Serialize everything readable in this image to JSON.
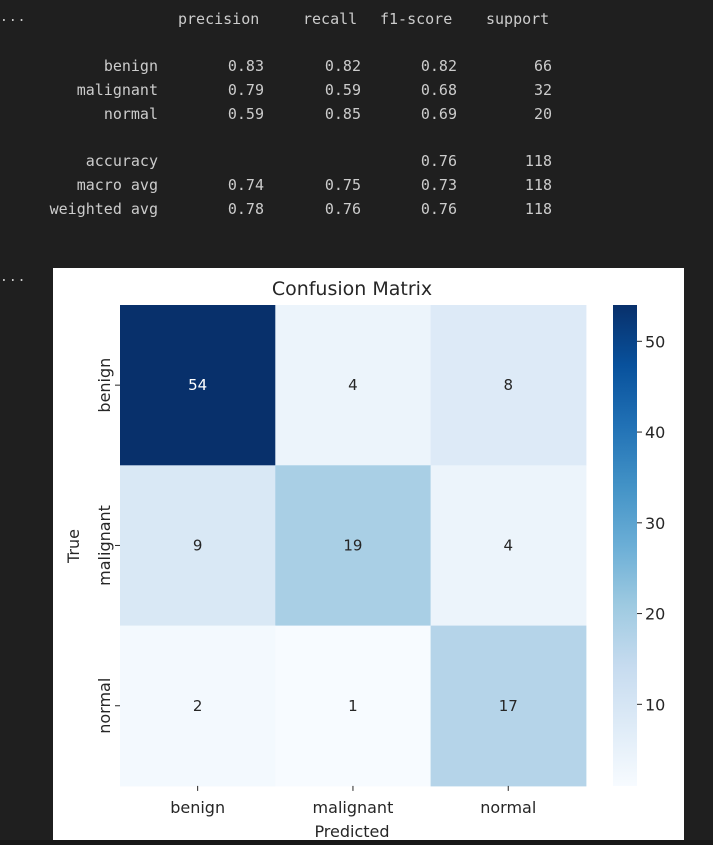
{
  "output_prefixes": [
    "...",
    "..."
  ],
  "classification_report": {
    "headers": [
      "precision",
      "recall",
      "f1-score",
      "support"
    ],
    "rows": [
      {
        "label": "benign",
        "precision": "0.83",
        "recall": "0.82",
        "f1": "0.82",
        "support": "66"
      },
      {
        "label": "malignant",
        "precision": "0.79",
        "recall": "0.59",
        "f1": "0.68",
        "support": "32"
      },
      {
        "label": "normal",
        "precision": "0.59",
        "recall": "0.85",
        "f1": "0.69",
        "support": "20"
      }
    ],
    "summary": [
      {
        "label": "accuracy",
        "precision": "",
        "recall": "",
        "f1": "0.76",
        "support": "118"
      },
      {
        "label": "macro avg",
        "precision": "0.74",
        "recall": "0.75",
        "f1": "0.73",
        "support": "118"
      },
      {
        "label": "weighted avg",
        "precision": "0.78",
        "recall": "0.76",
        "f1": "0.76",
        "support": "118"
      }
    ]
  },
  "chart_data": {
    "type": "heatmap",
    "title": "Confusion Matrix",
    "xlabel": "Predicted",
    "ylabel": "True",
    "x_categories": [
      "benign",
      "malignant",
      "normal"
    ],
    "y_categories": [
      "benign",
      "malignant",
      "normal"
    ],
    "values": [
      [
        54,
        4,
        8
      ],
      [
        9,
        19,
        4
      ],
      [
        2,
        1,
        17
      ]
    ],
    "colormap": "Blues",
    "colorbar": {
      "min": 1,
      "max": 54,
      "ticks": [
        10,
        20,
        30,
        40,
        50
      ]
    }
  }
}
